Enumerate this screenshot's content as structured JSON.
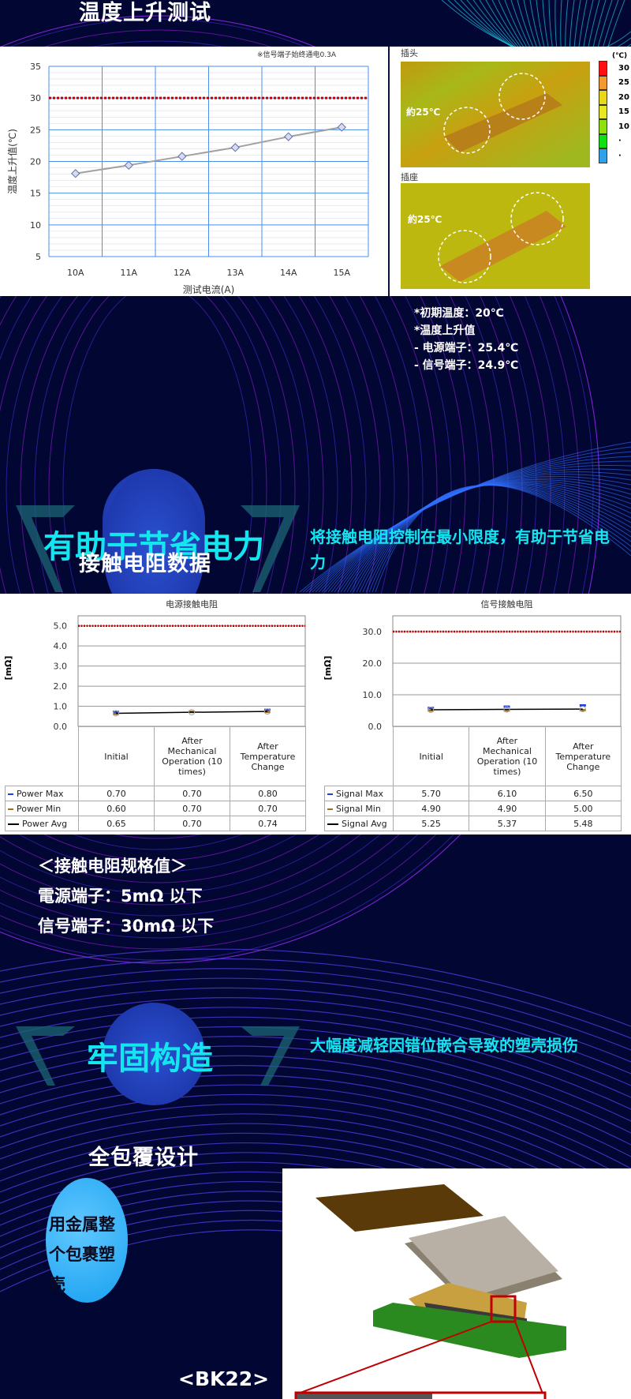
{
  "header": {
    "title": "温度上升测试"
  },
  "temp_chart": {
    "chart_data": {
      "type": "line",
      "note": "※信号端子始终通电0.3A",
      "ylabel": "温度上升值(℃)",
      "xlabel": "测试电流(A)",
      "categories": [
        "10A",
        "11A",
        "12A",
        "13A",
        "14A",
        "15A"
      ],
      "values": [
        18.1,
        19.4,
        20.8,
        22.2,
        23.9,
        25.4
      ],
      "yticks": [
        5,
        10,
        15,
        20,
        25,
        30,
        35
      ],
      "ylim": [
        5,
        35
      ],
      "limit_line": 30,
      "grid": true,
      "colors": {
        "line": "#a0a0a0",
        "marker": "#6070b0",
        "limit": "#c00000",
        "grid": "#4a90e8"
      }
    }
  },
  "thermal": {
    "plug_label": "插头",
    "socket_label": "插座",
    "plug_temp": "約25℃",
    "socket_temp": "約25℃",
    "scale_unit": "(℃)",
    "scale": [
      {
        "label": "30",
        "color": "#ff1010"
      },
      {
        "label": "25",
        "color": "#f09a30"
      },
      {
        "label": "20",
        "color": "#e8d818"
      },
      {
        "label": "15",
        "color": "#e8e820"
      },
      {
        "label": "10",
        "color": "#90e010"
      },
      {
        "label": "·",
        "color": "#10e010"
      },
      {
        "label": "·",
        "color": "#30a0e8"
      }
    ]
  },
  "notes": [
    "*初期温度：20℃",
    "*温度上升值",
    "- 电源端子：25.4℃",
    "- 信号端子：24.9℃"
  ],
  "feature1": {
    "title": "有助于节省电力",
    "desc": "将接触电阻控制在最小限度，有助于节省电力",
    "section": "接触电阻数据"
  },
  "resistance": {
    "chart_data": [
      {
        "type": "line",
        "title": "电源接触电阻",
        "ylabel": "[mΩ]",
        "yticks": [
          "0.0",
          "1.0",
          "2.0",
          "3.0",
          "4.0",
          "5.0"
        ],
        "ylim": [
          0,
          5.5
        ],
        "limit_line": 5.0,
        "categories": [
          "Initial",
          "After Mechanical Operation (10 times)",
          "After Temperature Change"
        ],
        "series": [
          {
            "name": "Power Max",
            "values": [
              "0.70",
              "0.70",
              "0.80"
            ],
            "color": "#2040e0"
          },
          {
            "name": "Power Min",
            "values": [
              "0.60",
              "0.70",
              "0.70"
            ],
            "color": "#a07020"
          },
          {
            "name": "Power Avg",
            "values": [
              "0.65",
              "0.70",
              "0.74"
            ],
            "color": "#000000"
          }
        ]
      },
      {
        "type": "line",
        "title": "信号接触电阻",
        "ylabel": "[mΩ]",
        "yticks": [
          "0.0",
          "10.0",
          "20.0",
          "30.0"
        ],
        "ylim": [
          0,
          35
        ],
        "limit_line": 30.0,
        "categories": [
          "Initial",
          "After Mechanical Operation (10 times)",
          "After Temperature Change"
        ],
        "series": [
          {
            "name": "Signal Max",
            "values": [
              "5.70",
              "6.10",
              "6.50"
            ],
            "color": "#2040e0"
          },
          {
            "name": "Signal Min",
            "values": [
              "4.90",
              "4.90",
              "5.00"
            ],
            "color": "#a07020"
          },
          {
            "name": "Signal Avg",
            "values": [
              "5.25",
              "5.37",
              "5.48"
            ],
            "color": "#000000"
          }
        ]
      }
    ]
  },
  "spec": {
    "title": "＜接触电阻规格值＞",
    "power": "電源端子：5mΩ 以下",
    "signal": "信号端子：30mΩ 以下"
  },
  "feature2": {
    "title": "牢固构造",
    "desc": "大幅度减轻因错位嵌合导致的塑壳损伤",
    "section": "全包覆设计",
    "bubble": "用金属整个包裹塑壳",
    "model": "<BK22>"
  }
}
